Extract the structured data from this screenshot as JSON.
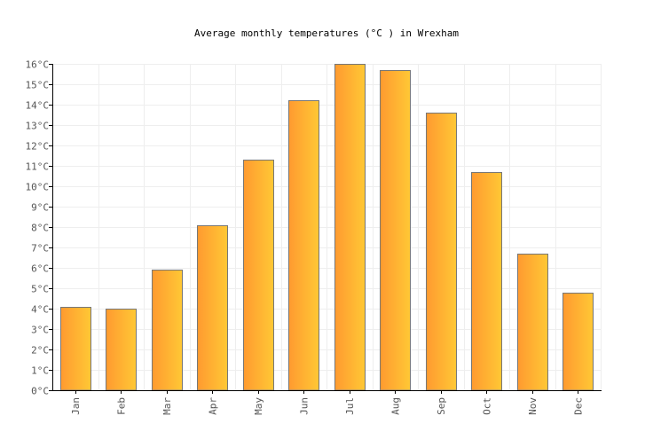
{
  "chart_data": {
    "type": "bar",
    "title": "Average monthly temperatures (°C ) in Wrexham",
    "xlabel": "",
    "ylabel": "",
    "categories": [
      "Jan",
      "Feb",
      "Mar",
      "Apr",
      "May",
      "Jun",
      "Jul",
      "Aug",
      "Sep",
      "Oct",
      "Nov",
      "Dec"
    ],
    "values": [
      4.1,
      4.0,
      5.9,
      8.1,
      11.3,
      14.2,
      16.0,
      15.7,
      13.6,
      10.7,
      6.7,
      4.8
    ],
    "ylim": [
      0,
      16
    ],
    "yticks": [
      "0°C",
      "1°C",
      "2°C",
      "3°C",
      "4°C",
      "5°C",
      "6°C",
      "7°C",
      "8°C",
      "9°C",
      "10°C",
      "11°C",
      "12°C",
      "13°C",
      "14°C",
      "15°C",
      "16°C"
    ],
    "grid": true,
    "colors": {
      "bar_start": "#ff9a30",
      "bar_end": "#ffc835",
      "bar_stroke": "#777777",
      "grid": "#eeeeee",
      "axis": "#000000"
    }
  }
}
